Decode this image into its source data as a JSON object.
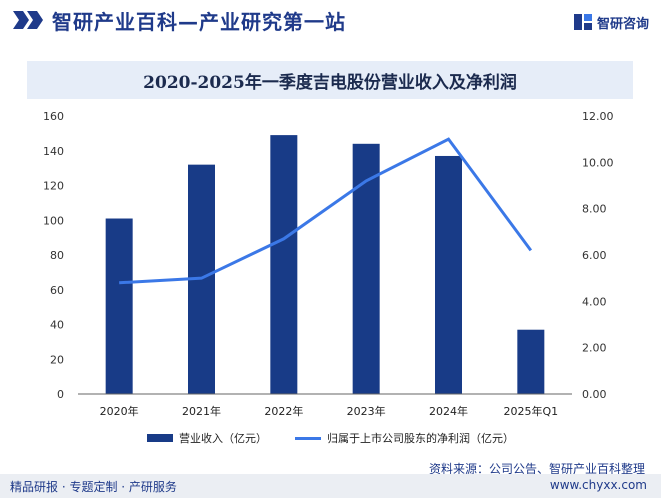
{
  "header": {
    "title": "智研产业百科—产业研究第一站",
    "brand_text": "智研咨询"
  },
  "colors": {
    "bar": "#183b87",
    "line": "#3b78e7",
    "title_band": "#e6edf8",
    "brand": "#1f3a8a"
  },
  "legend": {
    "bar_label": "营业收入（亿元）",
    "line_label": "归属于上市公司股东的净利润（亿元）"
  },
  "source": "资料来源：公司公告、智研产业百科整理",
  "footer": {
    "left": "精品研报 · 专题定制 · 产研服务",
    "right": "www.chyxx.com"
  },
  "chart_data": {
    "type": "bar",
    "title": "2020-2025年一季度吉电股份营业收入及净利润",
    "categories": [
      "2020年",
      "2021年",
      "2022年",
      "2023年",
      "2024年",
      "2025年Q1"
    ],
    "series": [
      {
        "name": "营业收入（亿元）",
        "type": "bar",
        "axis": "left",
        "values": [
          101,
          132,
          149,
          144,
          137,
          37
        ]
      },
      {
        "name": "归属于上市公司股东的净利润（亿元）",
        "type": "line",
        "axis": "right",
        "values": [
          4.8,
          5.0,
          6.7,
          9.2,
          11.0,
          6.2
        ]
      }
    ],
    "y_left": {
      "min": 0,
      "max": 160,
      "ticks": [
        0,
        20,
        40,
        60,
        80,
        100,
        120,
        140,
        160
      ]
    },
    "y_right": {
      "min": 0,
      "max": 12,
      "ticks": [
        "0.00",
        "2.00",
        "4.00",
        "6.00",
        "8.00",
        "10.00",
        "12.00"
      ]
    },
    "grid": false,
    "legend_position": "bottom"
  }
}
